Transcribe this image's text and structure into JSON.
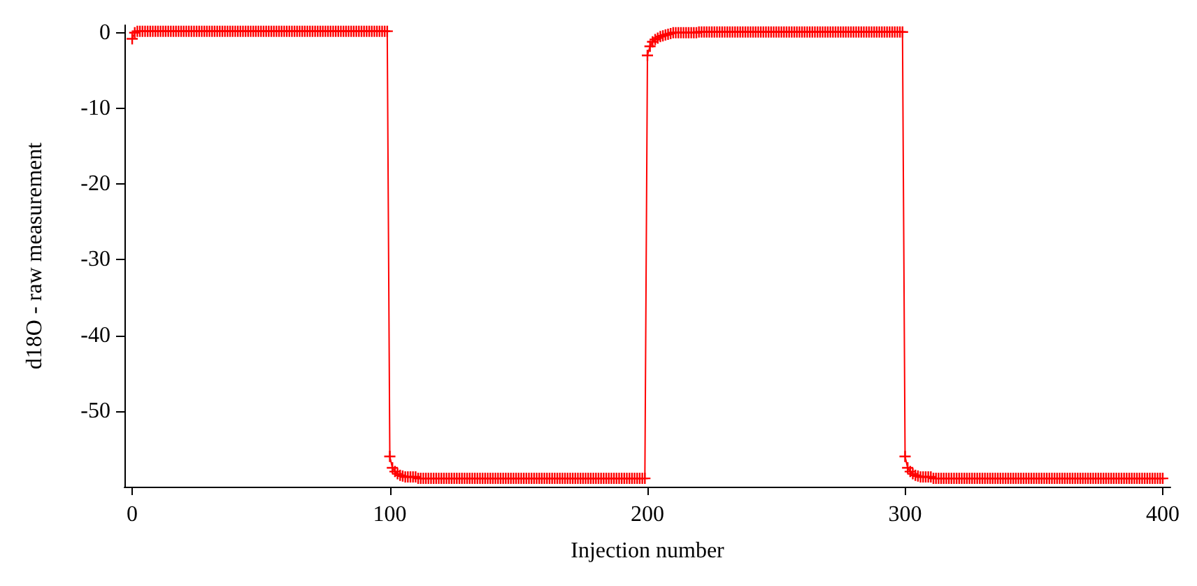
{
  "chart_data": {
    "type": "line",
    "xlabel": "Injection number",
    "ylabel": "d18O - raw measurement",
    "xlim": [
      -3,
      403
    ],
    "xticks": [
      0,
      100,
      200,
      300,
      400
    ],
    "ylim": [
      -60,
      1
    ],
    "yticks": [
      0,
      -10,
      -20,
      -30,
      -40,
      -50
    ],
    "marker": "cross",
    "line_style": "solid",
    "x": [
      0,
      1,
      2,
      3,
      4,
      5,
      6,
      7,
      8,
      9,
      10,
      11,
      12,
      13,
      14,
      15,
      16,
      17,
      18,
      19,
      20,
      21,
      22,
      23,
      24,
      25,
      26,
      27,
      28,
      29,
      30,
      31,
      32,
      33,
      34,
      35,
      36,
      37,
      38,
      39,
      40,
      41,
      42,
      43,
      44,
      45,
      46,
      47,
      48,
      49,
      50,
      51,
      52,
      53,
      54,
      55,
      56,
      57,
      58,
      59,
      60,
      61,
      62,
      63,
      64,
      65,
      66,
      67,
      68,
      69,
      70,
      71,
      72,
      73,
      74,
      75,
      76,
      77,
      78,
      79,
      80,
      81,
      82,
      83,
      84,
      85,
      86,
      87,
      88,
      89,
      90,
      91,
      92,
      93,
      94,
      95,
      96,
      97,
      98,
      99,
      100,
      101,
      102,
      103,
      104,
      105,
      106,
      107,
      108,
      109,
      110,
      111,
      112,
      113,
      114,
      115,
      116,
      117,
      118,
      119,
      120,
      121,
      122,
      123,
      124,
      125,
      126,
      127,
      128,
      129,
      130,
      131,
      132,
      133,
      134,
      135,
      136,
      137,
      138,
      139,
      140,
      141,
      142,
      143,
      144,
      145,
      146,
      147,
      148,
      149,
      150,
      151,
      152,
      153,
      154,
      155,
      156,
      157,
      158,
      159,
      160,
      161,
      162,
      163,
      164,
      165,
      166,
      167,
      168,
      169,
      170,
      171,
      172,
      173,
      174,
      175,
      176,
      177,
      178,
      179,
      180,
      181,
      182,
      183,
      184,
      185,
      186,
      187,
      188,
      189,
      190,
      191,
      192,
      193,
      194,
      195,
      196,
      197,
      198,
      199,
      200,
      201,
      202,
      203,
      204,
      205,
      206,
      207,
      208,
      209,
      210,
      211,
      212,
      213,
      214,
      215,
      216,
      217,
      218,
      219,
      220,
      221,
      222,
      223,
      224,
      225,
      226,
      227,
      228,
      229,
      230,
      231,
      232,
      233,
      234,
      235,
      236,
      237,
      238,
      239,
      240,
      241,
      242,
      243,
      244,
      245,
      246,
      247,
      248,
      249,
      250,
      251,
      252,
      253,
      254,
      255,
      256,
      257,
      258,
      259,
      260,
      261,
      262,
      263,
      264,
      265,
      266,
      267,
      268,
      269,
      270,
      271,
      272,
      273,
      274,
      275,
      276,
      277,
      278,
      279,
      280,
      281,
      282,
      283,
      284,
      285,
      286,
      287,
      288,
      289,
      290,
      291,
      292,
      293,
      294,
      295,
      296,
      297,
      298,
      299,
      300,
      301,
      302,
      303,
      304,
      305,
      306,
      307,
      308,
      309,
      310,
      311,
      312,
      313,
      314,
      315,
      316,
      317,
      318,
      319,
      320,
      321,
      322,
      323,
      324,
      325,
      326,
      327,
      328,
      329,
      330,
      331,
      332,
      333,
      334,
      335,
      336,
      337,
      338,
      339,
      340,
      341,
      342,
      343,
      344,
      345,
      346,
      347,
      348,
      349,
      350,
      351,
      352,
      353,
      354,
      355,
      356,
      357,
      358,
      359,
      360,
      361,
      362,
      363,
      364,
      365,
      366,
      367,
      368,
      369,
      370,
      371,
      372,
      373,
      374,
      375,
      376,
      377,
      378,
      379,
      380,
      381,
      382,
      383,
      384,
      385,
      386,
      387,
      388,
      389,
      390,
      391,
      392,
      393,
      394,
      395,
      396,
      397,
      398,
      399,
      400
    ],
    "series": [
      {
        "color": "#ff0000",
        "values": [
          -0.8,
          0,
          0.2,
          0.2,
          0.2,
          0.2,
          0.2,
          0.2,
          0.2,
          0.2,
          0.2,
          0.2,
          0.2,
          0.2,
          0.2,
          0.2,
          0.2,
          0.2,
          0.2,
          0.2,
          0.2,
          0.2,
          0.2,
          0.2,
          0.2,
          0.2,
          0.2,
          0.2,
          0.2,
          0.2,
          0.2,
          0.2,
          0.2,
          0.2,
          0.2,
          0.2,
          0.2,
          0.2,
          0.2,
          0.2,
          0.2,
          0.2,
          0.2,
          0.2,
          0.2,
          0.2,
          0.2,
          0.2,
          0.2,
          0.2,
          0.2,
          0.2,
          0.2,
          0.2,
          0.2,
          0.2,
          0.2,
          0.2,
          0.2,
          0.2,
          0.2,
          0.2,
          0.2,
          0.2,
          0.2,
          0.2,
          0.2,
          0.2,
          0.2,
          0.2,
          0.2,
          0.2,
          0.2,
          0.2,
          0.2,
          0.2,
          0.2,
          0.2,
          0.2,
          0.2,
          0.2,
          0.2,
          0.2,
          0.2,
          0.2,
          0.2,
          0.2,
          0.2,
          0.2,
          0.2,
          0.2,
          0.2,
          0.2,
          0.2,
          0.2,
          0.2,
          0.2,
          0.2,
          0.2,
          0.2,
          -56,
          -57.5,
          -58,
          -58.3,
          -58.5,
          -58.6,
          -58.7,
          -58.7,
          -58.7,
          -58.7,
          -58.7,
          -58.9,
          -58.9,
          -58.9,
          -58.9,
          -58.9,
          -58.9,
          -58.9,
          -58.9,
          -58.9,
          -58.9,
          -58.9,
          -58.9,
          -58.9,
          -58.9,
          -58.9,
          -58.9,
          -58.9,
          -58.9,
          -58.9,
          -58.9,
          -58.9,
          -58.9,
          -58.9,
          -58.9,
          -58.9,
          -58.9,
          -58.9,
          -58.9,
          -58.9,
          -58.9,
          -58.9,
          -58.9,
          -58.9,
          -58.9,
          -58.9,
          -58.9,
          -58.9,
          -58.9,
          -58.9,
          -58.9,
          -58.9,
          -58.9,
          -58.9,
          -58.9,
          -58.9,
          -58.9,
          -58.9,
          -58.9,
          -58.9,
          -58.9,
          -58.9,
          -58.9,
          -58.9,
          -58.9,
          -58.9,
          -58.9,
          -58.9,
          -58.9,
          -58.9,
          -58.9,
          -58.9,
          -58.9,
          -58.9,
          -58.9,
          -58.9,
          -58.9,
          -58.9,
          -58.9,
          -58.9,
          -58.9,
          -58.9,
          -58.9,
          -58.9,
          -58.9,
          -58.9,
          -58.9,
          -58.9,
          -58.9,
          -58.9,
          -58.9,
          -58.9,
          -58.9,
          -58.9,
          -58.9,
          -58.9,
          -58.9,
          -58.9,
          -58.9,
          -58.9,
          -3,
          -1.8,
          -1.2,
          -0.9,
          -0.7,
          -0.5,
          -0.4,
          -0.3,
          -0.2,
          -0.1,
          0,
          0,
          0,
          0,
          0,
          0,
          0,
          0,
          0,
          0,
          0.1,
          0.1,
          0.1,
          0.1,
          0.1,
          0.1,
          0.1,
          0.1,
          0.1,
          0.1,
          0.1,
          0.1,
          0.1,
          0.1,
          0.1,
          0.1,
          0.1,
          0.1,
          0.1,
          0.1,
          0.1,
          0.1,
          0.1,
          0.1,
          0.1,
          0.1,
          0.1,
          0.1,
          0.1,
          0.1,
          0.1,
          0.1,
          0.1,
          0.1,
          0.1,
          0.1,
          0.1,
          0.1,
          0.1,
          0.1,
          0.1,
          0.1,
          0.1,
          0.1,
          0.1,
          0.1,
          0.1,
          0.1,
          0.1,
          0.1,
          0.1,
          0.1,
          0.1,
          0.1,
          0.1,
          0.1,
          0.1,
          0.1,
          0.1,
          0.1,
          0.1,
          0.1,
          0.1,
          0.1,
          0.1,
          0.1,
          0.1,
          0.1,
          0.1,
          0.1,
          0.1,
          0.1,
          0.1,
          0.1,
          0.1,
          0.1,
          0.1,
          0.1,
          0.1,
          0.1,
          -56,
          -57.5,
          -58,
          -58.3,
          -58.5,
          -58.6,
          -58.7,
          -58.7,
          -58.7,
          -58.7,
          -58.7,
          -58.9,
          -58.9,
          -58.9,
          -58.9,
          -58.9,
          -58.9,
          -58.9,
          -58.9,
          -58.9,
          -58.9,
          -58.9,
          -58.9,
          -58.9,
          -58.9,
          -58.9,
          -58.9,
          -58.9,
          -58.9,
          -58.9,
          -58.9,
          -58.9,
          -58.9,
          -58.9,
          -58.9,
          -58.9,
          -58.9,
          -58.9,
          -58.9,
          -58.9,
          -58.9,
          -58.9,
          -58.9,
          -58.9,
          -58.9,
          -58.9,
          -58.9,
          -58.9,
          -58.9,
          -58.9,
          -58.9,
          -58.9,
          -58.9,
          -58.9,
          -58.9,
          -58.9,
          -58.9,
          -58.9,
          -58.9,
          -58.9,
          -58.9,
          -58.9,
          -58.9,
          -58.9,
          -58.9,
          -58.9,
          -58.9,
          -58.9,
          -58.9,
          -58.9,
          -58.9,
          -58.9,
          -58.9,
          -58.9,
          -58.9,
          -58.9,
          -58.9,
          -58.9,
          -58.9,
          -58.9,
          -58.9,
          -58.9,
          -58.9,
          -58.9,
          -58.9,
          -58.9,
          -58.9,
          -58.9,
          -58.9,
          -58.9,
          -58.9,
          -58.9,
          -58.9,
          -58.9,
          -58.9,
          -58.9,
          -58.9,
          -58.9,
          -58.9,
          -58.9,
          -58.9
        ]
      }
    ]
  }
}
